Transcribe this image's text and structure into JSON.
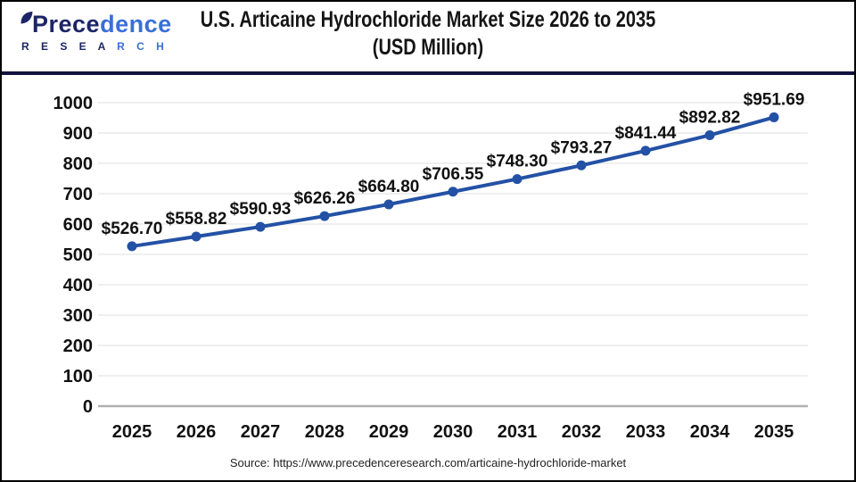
{
  "header": {
    "logo": {
      "part1": "Prece",
      "part2": "dence",
      "sub_part1": "R E S E A ",
      "sub_part2": "R C H"
    },
    "title_line1": "U.S. Articaine Hydrochloride Market Size 2026 to 2035",
    "title_line2": "(USD Million)"
  },
  "chart_data": {
    "type": "line",
    "title": "U.S. Articaine Hydrochloride Market Size 2026 to 2035 (USD Million)",
    "categories": [
      "2025",
      "2026",
      "2027",
      "2028",
      "2029",
      "2030",
      "2031",
      "2032",
      "2033",
      "2034",
      "2035"
    ],
    "values": [
      526.7,
      558.82,
      590.93,
      626.26,
      664.8,
      706.55,
      748.3,
      793.27,
      841.44,
      892.82,
      951.69
    ],
    "label_prefix": "$",
    "xlabel": "",
    "ylabel": "",
    "ylim": [
      0,
      1000
    ],
    "ytick_step": 100,
    "grid": true,
    "legend": "none",
    "line_color": "#2351a5",
    "marker_color": "#2351a5",
    "gridline_color": "#eaeaea",
    "axis_line_color": "#b0b0b0",
    "label_color": "#111111"
  },
  "footer": {
    "source": "Source: https://www.precedenceresearch.com/articaine-hydrochloride-market"
  }
}
